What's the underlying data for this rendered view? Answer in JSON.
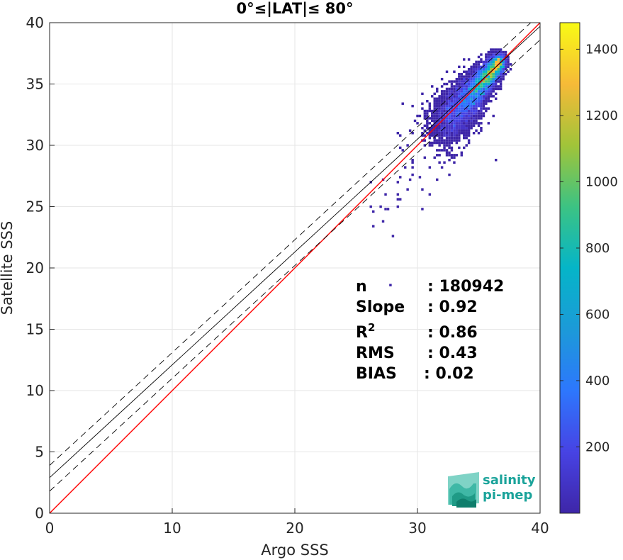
{
  "chart_data": {
    "type": "heatmap",
    "title": "0°≤|LAT|≤ 80°",
    "xlabel": "Argo SSS",
    "ylabel": "Satellite SSS",
    "xlim": [
      0,
      40
    ],
    "ylim": [
      0,
      40
    ],
    "x_ticks": [
      "0",
      "10",
      "20",
      "30",
      "40"
    ],
    "y_ticks": [
      "0",
      "5",
      "10",
      "15",
      "20",
      "25",
      "30",
      "35",
      "40"
    ],
    "grid": true,
    "colorbar": {
      "range": [
        0,
        1480
      ],
      "ticks": [
        "200",
        "400",
        "600",
        "800",
        "1000",
        "1200",
        "1400"
      ],
      "colormap": "parula"
    },
    "lines": [
      {
        "name": "1:1",
        "slope": 1.0,
        "intercept": 0.0,
        "color": "#ff0000",
        "style": "solid"
      },
      {
        "name": "regression",
        "slope": 0.92,
        "intercept": 2.9,
        "color": "#000000",
        "style": "solid"
      },
      {
        "name": "regression_upper",
        "slope": 0.92,
        "intercept": 3.9,
        "color": "#000000",
        "style": "dashed"
      },
      {
        "name": "regression_lower",
        "slope": 0.92,
        "intercept": 1.8,
        "color": "#000000",
        "style": "dashed"
      }
    ],
    "density_axis": {
      "x_start": 31.5,
      "y_start": 30.8,
      "x_end": 36.8,
      "y_end": 36.9
    },
    "stats": {
      "n_label": "n",
      "n_value": ": 180942",
      "slope_label": "Slope",
      "slope_value": ": 0.92",
      "r2_label": "R",
      "r2_sup": "2",
      "r2_value": ": 0.86",
      "rms_label": "RMS",
      "rms_value": ": 0.43",
      "bias_label": "BIAS",
      "bias_value": ": 0.02"
    }
  },
  "logo": {
    "line1": "salinity",
    "line2": "pi-mep"
  },
  "colors": {
    "one_to_one": "#ff0000",
    "regression": "#000000",
    "grid": "#e6e6e6",
    "logo": "#1aa39a"
  }
}
